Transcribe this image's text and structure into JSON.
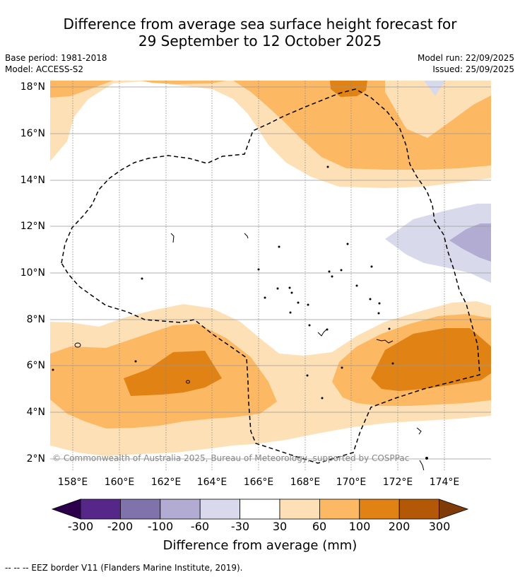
{
  "header": {
    "title_line1": "Difference from average sea surface height forecast for",
    "title_line2": "29 September to 12 October 2025"
  },
  "meta": {
    "base_period": "Base period: 1981-2018",
    "model": "Model: ACCESS-S2",
    "model_run": "Model run: 22/09/2025",
    "issued": "Issued: 25/09/2025"
  },
  "map": {
    "lat_labels": [
      "18°N",
      "16°N",
      "14°N",
      "12°N",
      "10°N",
      "8°N",
      "6°N",
      "4°N",
      "2°N"
    ],
    "lon_labels": [
      "158°E",
      "160°E",
      "162°E",
      "164°E",
      "166°E",
      "168°E",
      "170°E",
      "172°E",
      "174°E"
    ],
    "copyright": "© Commonwealth of Australia 2025, Bureau of Meteorology, supported by COSPPac"
  },
  "colorbar": {
    "tick_labels": [
      "-300",
      "-200",
      "-100",
      "-60",
      "-30",
      "30",
      "60",
      "100",
      "200",
      "300"
    ],
    "label": "Difference from average (mm)",
    "colors": [
      "#2d004b",
      "#542788",
      "#8073ac",
      "#b2abd2",
      "#d8daeb",
      "#ffffff",
      "#fee0b6",
      "#fdb863",
      "#e08214",
      "#b35806",
      "#7f3b08"
    ]
  },
  "footer": {
    "legend": "--  --  -- EEZ border V11 (Flanders Marine Institute, 2019)."
  }
}
